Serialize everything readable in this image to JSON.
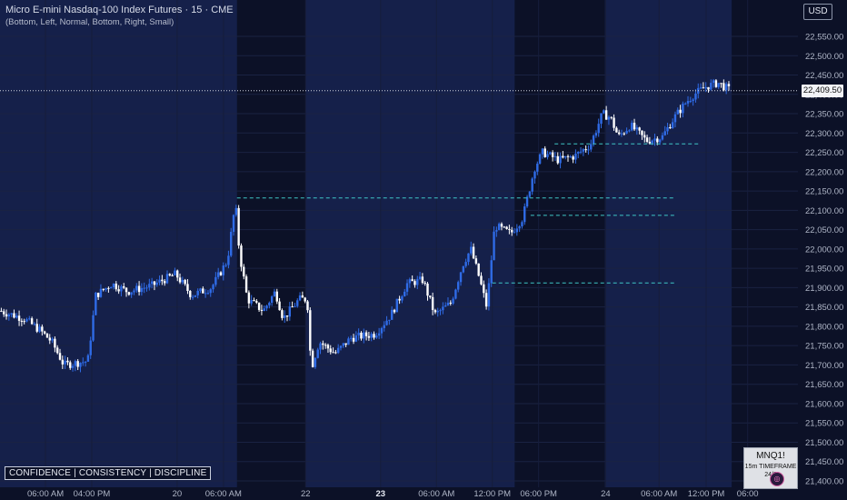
{
  "header": {
    "title": "Micro E-mini Nasdaq-100 Index Futures · 15 · CME",
    "subtitle": "(Bottom, Left, Normal, Bottom, Right, Small)"
  },
  "price_scale": {
    "currency": "USD",
    "last_price": "22,409.50",
    "last_price_value": 22409.5
  },
  "motto": "CONFIDENCE | CONSISTENCY | DISCIPLINE",
  "info_box": {
    "symbol": "MNQ1!",
    "timeframe": "15m TIMEFRAME",
    "date": "24/0"
  },
  "colors": {
    "background": "#0c1127",
    "session_band": "#15204a",
    "up_candle": "#2f6be6",
    "down_candle": "#ffffff",
    "level_line": "#3fc6c6"
  },
  "chart_data": {
    "type": "candlestick",
    "ylim": [
      21400,
      22600
    ],
    "y_ticks": [
      "22,550.00",
      "22,500.00",
      "22,450.00",
      "22,400.00",
      "22,350.00",
      "22,300.00",
      "22,250.00",
      "22,200.00",
      "22,150.00",
      "22,100.00",
      "22,050.00",
      "22,000.00",
      "21,950.00",
      "21,900.00",
      "21,850.00",
      "21,800.00",
      "21,750.00",
      "21,700.00",
      "21,650.00",
      "21,600.00",
      "21,550.00",
      "21,500.00",
      "21,450.00",
      "21,400.00"
    ],
    "x_ticks": [
      {
        "label": "06:00 AM",
        "t": 0.057,
        "bold": false
      },
      {
        "label": "04:00 PM",
        "t": 0.115,
        "bold": false
      },
      {
        "label": "20",
        "t": 0.222,
        "bold": false
      },
      {
        "label": "06:00 AM",
        "t": 0.28,
        "bold": false
      },
      {
        "label": "22",
        "t": 0.383,
        "bold": false
      },
      {
        "label": "23",
        "t": 0.477,
        "bold": true
      },
      {
        "label": "06:00 AM",
        "t": 0.547,
        "bold": false
      },
      {
        "label": "12:00 PM",
        "t": 0.617,
        "bold": false
      },
      {
        "label": "06:00 PM",
        "t": 0.675,
        "bold": false
      },
      {
        "label": "24",
        "t": 0.759,
        "bold": false
      },
      {
        "label": "06:00 AM",
        "t": 0.826,
        "bold": false
      },
      {
        "label": "12:00 PM",
        "t": 0.885,
        "bold": false
      },
      {
        "label": "06:00",
        "t": 0.937,
        "bold": false
      }
    ],
    "session_bands": [
      [
        0.0,
        0.297
      ],
      [
        0.383,
        0.645
      ],
      [
        0.758,
        0.917
      ]
    ],
    "anchors": [
      [
        0.0,
        21840
      ],
      [
        0.03,
        21820
      ],
      [
        0.05,
        21790
      ],
      [
        0.065,
        21760
      ],
      [
        0.08,
        21700
      ],
      [
        0.11,
        21710
      ],
      [
        0.12,
        21880
      ],
      [
        0.14,
        21910
      ],
      [
        0.16,
        21890
      ],
      [
        0.19,
        21905
      ],
      [
        0.22,
        21935
      ],
      [
        0.24,
        21880
      ],
      [
        0.265,
        21900
      ],
      [
        0.285,
        21970
      ],
      [
        0.295,
        22120
      ],
      [
        0.3,
        21990
      ],
      [
        0.31,
        21870
      ],
      [
        0.33,
        21840
      ],
      [
        0.345,
        21890
      ],
      [
        0.355,
        21820
      ],
      [
        0.375,
        21870
      ],
      [
        0.385,
        21870
      ],
      [
        0.39,
        21690
      ],
      [
        0.4,
        21760
      ],
      [
        0.42,
        21730
      ],
      [
        0.44,
        21770
      ],
      [
        0.47,
        21780
      ],
      [
        0.49,
        21830
      ],
      [
        0.51,
        21910
      ],
      [
        0.53,
        21920
      ],
      [
        0.545,
        21830
      ],
      [
        0.565,
        21860
      ],
      [
        0.58,
        21960
      ],
      [
        0.59,
        22000
      ],
      [
        0.6,
        21930
      ],
      [
        0.61,
        21850
      ],
      [
        0.62,
        22060
      ],
      [
        0.64,
        22040
      ],
      [
        0.655,
        22080
      ],
      [
        0.67,
        22210
      ],
      [
        0.68,
        22250
      ],
      [
        0.7,
        22230
      ],
      [
        0.72,
        22240
      ],
      [
        0.74,
        22270
      ],
      [
        0.755,
        22350
      ],
      [
        0.765,
        22340
      ],
      [
        0.775,
        22290
      ],
      [
        0.79,
        22320
      ],
      [
        0.81,
        22280
      ],
      [
        0.83,
        22290
      ],
      [
        0.845,
        22340
      ],
      [
        0.86,
        22380
      ],
      [
        0.87,
        22400
      ],
      [
        0.885,
        22420
      ],
      [
        0.9,
        22430
      ],
      [
        0.915,
        22410
      ]
    ],
    "levels": [
      {
        "price": 22132,
        "t_start": 0.297,
        "t_end": 0.845
      },
      {
        "price": 22087,
        "t_start": 0.665,
        "t_end": 0.845
      },
      {
        "price": 22272,
        "t_start": 0.695,
        "t_end": 0.877
      },
      {
        "price": 21912,
        "t_start": 0.617,
        "t_end": 0.845
      }
    ]
  }
}
